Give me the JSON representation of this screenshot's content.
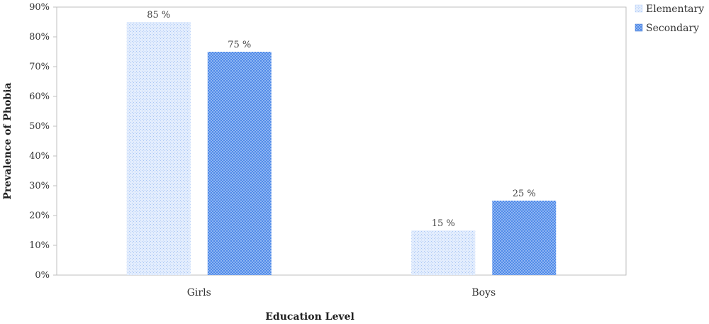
{
  "chart_data": {
    "type": "bar",
    "categories": [
      "Girls",
      "Boys"
    ],
    "series": [
      {
        "name": "Elementary",
        "values": [
          85,
          15
        ],
        "color": "#cfe0fb"
      },
      {
        "name": "Secondary",
        "values": [
          75,
          25
        ],
        "color": "#4a86e8"
      }
    ],
    "data_labels": [
      [
        "85 %",
        "15 %"
      ],
      [
        "75 %",
        "25 %"
      ]
    ],
    "xlabel": "Education Level",
    "ylabel": "Prevalence of Phobia",
    "ylim": [
      0,
      90
    ],
    "yticks": [
      0,
      10,
      20,
      30,
      40,
      50,
      60,
      70,
      80,
      90
    ],
    "ytick_labels": [
      "0%",
      "10%",
      "20%",
      "30%",
      "40%",
      "50%",
      "60%",
      "70%",
      "80%",
      "90%"
    ],
    "grid": false,
    "legend_position": "top-right"
  }
}
